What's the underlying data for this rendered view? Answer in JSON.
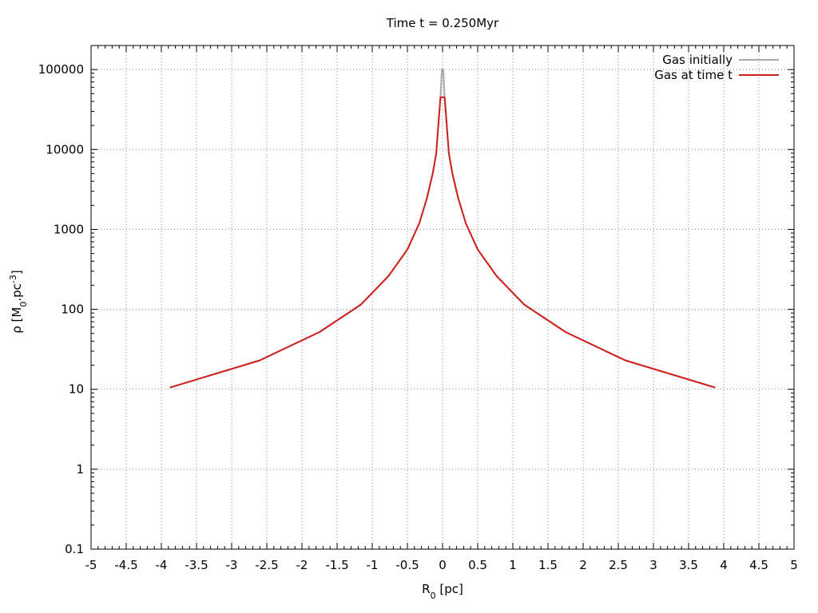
{
  "chart_data": {
    "type": "line",
    "title": "Time t = 0.250Myr",
    "xlabel": {
      "base": "R",
      "sub": "0",
      "rest": " [pc]"
    },
    "ylabel": {
      "prefix": "ρ [M",
      "sub": "0",
      "mid": ".pc",
      "sup": "-3",
      "suffix": "]"
    },
    "xlim": [
      -5,
      5
    ],
    "ylim": [
      0.1,
      200000
    ],
    "yscale": "log",
    "grid": true,
    "legend_position": "top-right",
    "xticks": [
      "-5",
      "-4.5",
      "-4",
      "-3.5",
      "-3",
      "-2.5",
      "-2",
      "-1.5",
      "-1",
      "-0.5",
      "0",
      "0.5",
      "1",
      "1.5",
      "2",
      "2.5",
      "3",
      "3.5",
      "4",
      "4.5",
      "5"
    ],
    "yticks": [
      "0.1",
      "1",
      "10",
      "100",
      "1000",
      "10000",
      "100000"
    ],
    "series": [
      {
        "name": "Gas initially",
        "color": "#aaaaaa",
        "x": [
          -3.88,
          -2.6,
          -1.75,
          -1.16,
          -0.77,
          -0.5,
          -0.33,
          -0.22,
          -0.14,
          -0.09,
          -0.06,
          -0.03,
          -0.01,
          0.01,
          0.03,
          0.06,
          0.09,
          0.14,
          0.22,
          0.33,
          0.5,
          0.77,
          1.16,
          1.75,
          2.6,
          3.88
        ],
        "y": [
          10.5,
          23,
          52,
          115,
          260,
          560,
          1200,
          2500,
          5000,
          9000,
          20000,
          45000,
          100000,
          100000,
          45000,
          20000,
          9000,
          5000,
          2500,
          1200,
          560,
          260,
          115,
          52,
          23,
          10.5
        ]
      },
      {
        "name": "Gas at time t",
        "color": "#d0201c",
        "x": [
          -3.88,
          -2.6,
          -1.75,
          -1.16,
          -0.77,
          -0.5,
          -0.33,
          -0.22,
          -0.14,
          -0.09,
          -0.06,
          -0.03,
          -0.01,
          0.01,
          0.03,
          0.06,
          0.09,
          0.14,
          0.22,
          0.33,
          0.5,
          0.77,
          1.16,
          1.75,
          2.6,
          3.88
        ],
        "y": [
          10.5,
          23,
          52,
          115,
          260,
          560,
          1200,
          2500,
          5000,
          9000,
          20000,
          45000,
          45000,
          45000,
          45000,
          20000,
          9000,
          5000,
          2500,
          1200,
          560,
          260,
          115,
          52,
          23,
          10.5
        ]
      }
    ]
  }
}
